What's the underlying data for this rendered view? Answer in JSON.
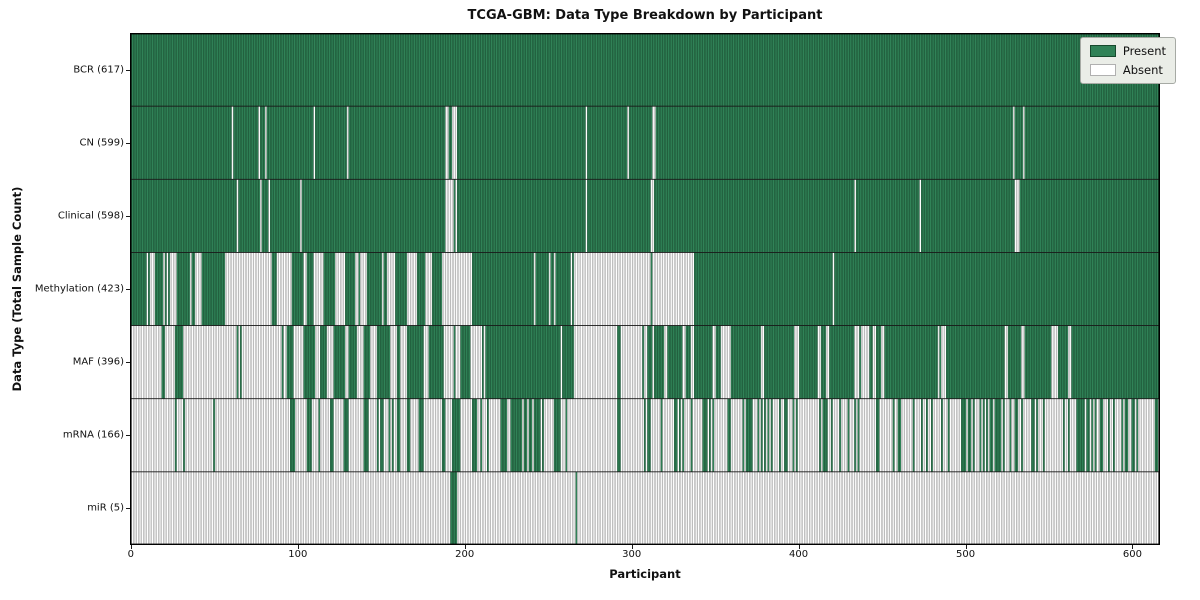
{
  "title": "TCGA-GBM: Data Type Breakdown by Participant",
  "xlabel": "Participant",
  "ylabel": "Data Type (Total Sample Count)",
  "legend": {
    "present_label": "Present",
    "absent_label": "Absent"
  },
  "colors": {
    "present": "#308257",
    "present_edge": "#17492d",
    "absent": "#ffffff",
    "absent_edge": "#8c8c8c",
    "separator": "#1a1a1a",
    "spine": "#000000",
    "legend_bg": "#eaede7",
    "legend_border": "#a6aaa4"
  },
  "chart_data": {
    "type": "heatmap",
    "title": "TCGA-GBM: Data Type Breakdown by Participant",
    "xlabel": "Participant",
    "ylabel": "Data Type (Total Sample Count)",
    "legend": [
      "Present",
      "Absent"
    ],
    "legend_position": "upper right",
    "n_participants": 617,
    "x_ticks": [
      0,
      100,
      200,
      300,
      400,
      500,
      600
    ],
    "cell_states": {
      "present": 1,
      "absent": 0
    },
    "rows": [
      {
        "label": "BCR (617)",
        "name": "BCR",
        "total": 617,
        "segments": [
          [
            0,
            617,
            1
          ]
        ]
      },
      {
        "label": "CN (599)",
        "name": "CN",
        "total": 599,
        "segments": [
          [
            0,
            61,
            1
          ],
          [
            61,
            62,
            0
          ],
          [
            62,
            77,
            1
          ],
          [
            77,
            78,
            0
          ],
          [
            78,
            81,
            1
          ],
          [
            81,
            82,
            0
          ],
          [
            82,
            110,
            1
          ],
          [
            110,
            111,
            0
          ],
          [
            111,
            130,
            1
          ],
          [
            130,
            131,
            0
          ],
          [
            131,
            189,
            1
          ],
          [
            189,
            196,
            0.3
          ],
          [
            196,
            273,
            1
          ],
          [
            273,
            274,
            0
          ],
          [
            274,
            298,
            1
          ],
          [
            298,
            299,
            0
          ],
          [
            299,
            312,
            1
          ],
          [
            312,
            315,
            0.3
          ],
          [
            315,
            529,
            1
          ],
          [
            529,
            530,
            0
          ],
          [
            530,
            535,
            1
          ],
          [
            535,
            536,
            0
          ],
          [
            536,
            617,
            1
          ]
        ]
      },
      {
        "label": "Clinical (598)",
        "name": "Clinical",
        "total": 598,
        "segments": [
          [
            0,
            64,
            1
          ],
          [
            64,
            65,
            0
          ],
          [
            65,
            78,
            1
          ],
          [
            78,
            79,
            0
          ],
          [
            79,
            83,
            1
          ],
          [
            83,
            84,
            0
          ],
          [
            84,
            102,
            1
          ],
          [
            102,
            103,
            0
          ],
          [
            103,
            189,
            1
          ],
          [
            189,
            196,
            0.3
          ],
          [
            196,
            273,
            1
          ],
          [
            273,
            274,
            0
          ],
          [
            274,
            312,
            1
          ],
          [
            312,
            315,
            0.3
          ],
          [
            315,
            434,
            1
          ],
          [
            434,
            435,
            0
          ],
          [
            435,
            473,
            1
          ],
          [
            473,
            474,
            0
          ],
          [
            474,
            530,
            1
          ],
          [
            530,
            533,
            0.35
          ],
          [
            533,
            617,
            1
          ]
        ]
      },
      {
        "label": "Methylation (423)",
        "name": "Methylation",
        "total": 423,
        "segments": [
          [
            0,
            10,
            1
          ],
          [
            10,
            15,
            0.4
          ],
          [
            15,
            20,
            1
          ],
          [
            20,
            28,
            0.5
          ],
          [
            28,
            35,
            1
          ],
          [
            35,
            48,
            0.6
          ],
          [
            48,
            58,
            0.85
          ],
          [
            58,
            85,
            0.05
          ],
          [
            85,
            88,
            1
          ],
          [
            88,
            97,
            0
          ],
          [
            97,
            104,
            1
          ],
          [
            104,
            106,
            0
          ],
          [
            106,
            110,
            1
          ],
          [
            110,
            116,
            0
          ],
          [
            116,
            123,
            1
          ],
          [
            123,
            129,
            0
          ],
          [
            129,
            135,
            1
          ],
          [
            135,
            143,
            0.2
          ],
          [
            143,
            155,
            0.7
          ],
          [
            155,
            159,
            0
          ],
          [
            159,
            165,
            1
          ],
          [
            165,
            173,
            0.25
          ],
          [
            173,
            177,
            1
          ],
          [
            177,
            181,
            0
          ],
          [
            181,
            187,
            1
          ],
          [
            187,
            205,
            0.05
          ],
          [
            205,
            266,
            0.85
          ],
          [
            266,
            338,
            0.02
          ],
          [
            338,
            421,
            1
          ],
          [
            421,
            422,
            0
          ],
          [
            422,
            617,
            1
          ]
        ]
      },
      {
        "label": "MAF (396)",
        "name": "MAF",
        "total": 396,
        "segments": [
          [
            0,
            19,
            0.05
          ],
          [
            19,
            21,
            1
          ],
          [
            21,
            27,
            0
          ],
          [
            27,
            32,
            1
          ],
          [
            32,
            94,
            0.03
          ],
          [
            94,
            98,
            1
          ],
          [
            98,
            104,
            0
          ],
          [
            104,
            111,
            1
          ],
          [
            111,
            114,
            0
          ],
          [
            114,
            118,
            1
          ],
          [
            118,
            122,
            0
          ],
          [
            122,
            129,
            1
          ],
          [
            129,
            131,
            0
          ],
          [
            131,
            136,
            1
          ],
          [
            136,
            140,
            0
          ],
          [
            140,
            144,
            1
          ],
          [
            144,
            148,
            0
          ],
          [
            148,
            156,
            1
          ],
          [
            156,
            160,
            0
          ],
          [
            160,
            162,
            1
          ],
          [
            162,
            166,
            0
          ],
          [
            166,
            176,
            1
          ],
          [
            176,
            179,
            0
          ],
          [
            179,
            188,
            1
          ],
          [
            188,
            198,
            0.1
          ],
          [
            198,
            204,
            1
          ],
          [
            204,
            208,
            0
          ],
          [
            208,
            214,
            0.5
          ],
          [
            214,
            258,
            1
          ],
          [
            258,
            259,
            0
          ],
          [
            259,
            266,
            1
          ],
          [
            266,
            292,
            0.03
          ],
          [
            292,
            294,
            1
          ],
          [
            294,
            308,
            0.05
          ],
          [
            308,
            314,
            0.3
          ],
          [
            314,
            320,
            1
          ],
          [
            320,
            322,
            0
          ],
          [
            322,
            331,
            1
          ],
          [
            331,
            333,
            0
          ],
          [
            333,
            336,
            1
          ],
          [
            336,
            338,
            0
          ],
          [
            338,
            349,
            1
          ],
          [
            349,
            351,
            0
          ],
          [
            351,
            354,
            1
          ],
          [
            354,
            360,
            0.2
          ],
          [
            360,
            378,
            1
          ],
          [
            378,
            380,
            0
          ],
          [
            380,
            398,
            1
          ],
          [
            398,
            401,
            0
          ],
          [
            401,
            412,
            1
          ],
          [
            412,
            414,
            0
          ],
          [
            414,
            417,
            1
          ],
          [
            417,
            419,
            0
          ],
          [
            419,
            434,
            1
          ],
          [
            434,
            437,
            0
          ],
          [
            437,
            448,
            0.5
          ],
          [
            448,
            450,
            1
          ],
          [
            450,
            452,
            0
          ],
          [
            452,
            484,
            1
          ],
          [
            484,
            487,
            0.3
          ],
          [
            487,
            489,
            0
          ],
          [
            489,
            524,
            1
          ],
          [
            524,
            526,
            0
          ],
          [
            526,
            534,
            1
          ],
          [
            534,
            536,
            0
          ],
          [
            536,
            552,
            1
          ],
          [
            552,
            556,
            0.4
          ],
          [
            556,
            562,
            1
          ],
          [
            562,
            564,
            0
          ],
          [
            564,
            617,
            1
          ]
        ]
      },
      {
        "label": "mRNA (166)",
        "name": "mRNA",
        "total": 166,
        "segments": [
          [
            0,
            27,
            0.02
          ],
          [
            27,
            28,
            1
          ],
          [
            28,
            32,
            0
          ],
          [
            32,
            33,
            1
          ],
          [
            33,
            96,
            0.02
          ],
          [
            96,
            99,
            1
          ],
          [
            99,
            106,
            0
          ],
          [
            106,
            109,
            1
          ],
          [
            109,
            112,
            0
          ],
          [
            112,
            116,
            0.5
          ],
          [
            116,
            120,
            0
          ],
          [
            120,
            122,
            1
          ],
          [
            122,
            128,
            0
          ],
          [
            128,
            131,
            1
          ],
          [
            131,
            140,
            0.1
          ],
          [
            140,
            143,
            1
          ],
          [
            143,
            148,
            0
          ],
          [
            148,
            158,
            0.4
          ],
          [
            158,
            160,
            0
          ],
          [
            160,
            162,
            1
          ],
          [
            162,
            166,
            0
          ],
          [
            166,
            168,
            1
          ],
          [
            168,
            173,
            0
          ],
          [
            173,
            176,
            1
          ],
          [
            176,
            187,
            0.05
          ],
          [
            187,
            189,
            1
          ],
          [
            189,
            193,
            0
          ],
          [
            193,
            198,
            0.8
          ],
          [
            198,
            206,
            0.05
          ],
          [
            206,
            216,
            0.6
          ],
          [
            216,
            221,
            0
          ],
          [
            221,
            250,
            0.8
          ],
          [
            250,
            254,
            0
          ],
          [
            254,
            258,
            1
          ],
          [
            258,
            266,
            0.1
          ],
          [
            266,
            292,
            0.02
          ],
          [
            292,
            294,
            1
          ],
          [
            294,
            308,
            0.03
          ],
          [
            308,
            498,
            0.3
          ],
          [
            498,
            528,
            0.55
          ],
          [
            528,
            596,
            0.3
          ],
          [
            596,
            602,
            0.9
          ],
          [
            602,
            617,
            0.25
          ]
        ]
      },
      {
        "label": "miR (5)",
        "name": "miR",
        "total": 5,
        "segments": [
          [
            0,
            192,
            0
          ],
          [
            192,
            196,
            1
          ],
          [
            196,
            267,
            0
          ],
          [
            267,
            268,
            1
          ],
          [
            268,
            617,
            0
          ]
        ]
      }
    ]
  }
}
